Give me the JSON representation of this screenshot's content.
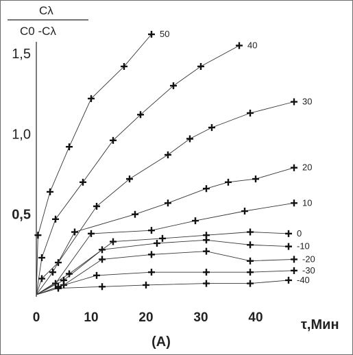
{
  "chart_data": {
    "type": "line",
    "ylabel": {
      "numerator": "Cλ",
      "denominator": "C0 -Cλ"
    },
    "xlabel": "τ,Мин",
    "caption": "(A)",
    "xlim": [
      0,
      48
    ],
    "ylim": [
      0,
      1.65
    ],
    "x_ticks": [
      "0",
      "10",
      "20",
      "30",
      "40"
    ],
    "x_tick_values": [
      0,
      10,
      20,
      30,
      40
    ],
    "y_ticks": [
      "0,5",
      "1,0",
      "1,5"
    ],
    "y_tick_values": [
      0.5,
      1.0,
      1.5
    ],
    "series": [
      {
        "name": "50",
        "points": [
          [
            0,
            0
          ],
          [
            0.3,
            0.37
          ],
          [
            2.5,
            0.64
          ],
          [
            6,
            0.92
          ],
          [
            10,
            1.22
          ],
          [
            16,
            1.42
          ],
          [
            21,
            1.62
          ]
        ]
      },
      {
        "name": "40",
        "points": [
          [
            0,
            0
          ],
          [
            1,
            0.23
          ],
          [
            3.5,
            0.47
          ],
          [
            8.5,
            0.7
          ],
          [
            14,
            0.96
          ],
          [
            19,
            1.12
          ],
          [
            25,
            1.3
          ],
          [
            30,
            1.42
          ],
          [
            37,
            1.55
          ]
        ]
      },
      {
        "name": "30",
        "points": [
          [
            0,
            0
          ],
          [
            1,
            0.1
          ],
          [
            4,
            0.2
          ],
          [
            11,
            0.55
          ],
          [
            17,
            0.72
          ],
          [
            24,
            0.87
          ],
          [
            28,
            0.97
          ],
          [
            32,
            1.04
          ],
          [
            39,
            1.13
          ],
          [
            47,
            1.2
          ]
        ]
      },
      {
        "name": "20",
        "points": [
          [
            0,
            0
          ],
          [
            3,
            0.14
          ],
          [
            7,
            0.39
          ],
          [
            18,
            0.5
          ],
          [
            24,
            0.57
          ],
          [
            31,
            0.66
          ],
          [
            35,
            0.7
          ],
          [
            40,
            0.72
          ],
          [
            47,
            0.79
          ]
        ]
      },
      {
        "name": "10",
        "points": [
          [
            0,
            0
          ],
          [
            3.5,
            0.07
          ],
          [
            10,
            0.38
          ],
          [
            21,
            0.4
          ],
          [
            29,
            0.46
          ],
          [
            38,
            0.52
          ],
          [
            47,
            0.57
          ]
        ]
      },
      {
        "name": "0",
        "points": [
          [
            0,
            0
          ],
          [
            6,
            0.13
          ],
          [
            14,
            0.33
          ],
          [
            23,
            0.35
          ],
          [
            31,
            0.37
          ],
          [
            39,
            0.39
          ],
          [
            46,
            0.38
          ]
        ]
      },
      {
        "name": "-10",
        "points": [
          [
            0,
            0
          ],
          [
            5,
            0.09
          ],
          [
            12,
            0.28
          ],
          [
            22,
            0.32
          ],
          [
            31,
            0.34
          ],
          [
            39,
            0.31
          ],
          [
            46,
            0.3
          ]
        ]
      },
      {
        "name": "-20",
        "points": [
          [
            0,
            0
          ],
          [
            5,
            0.06
          ],
          [
            12,
            0.22
          ],
          [
            21,
            0.25
          ],
          [
            31,
            0.27
          ],
          [
            39,
            0.21
          ],
          [
            47,
            0.22
          ]
        ]
      },
      {
        "name": "-30",
        "points": [
          [
            0,
            0
          ],
          [
            4,
            0.05
          ],
          [
            11,
            0.12
          ],
          [
            21,
            0.14
          ],
          [
            31,
            0.14
          ],
          [
            39,
            0.14
          ],
          [
            47,
            0.15
          ]
        ]
      },
      {
        "name": "-40",
        "points": [
          [
            0,
            0
          ],
          [
            4,
            0.04
          ],
          [
            12,
            0.05
          ],
          [
            20,
            0.06
          ],
          [
            31,
            0.07
          ],
          [
            39,
            0.07
          ],
          [
            46,
            0.09
          ]
        ]
      }
    ]
  }
}
